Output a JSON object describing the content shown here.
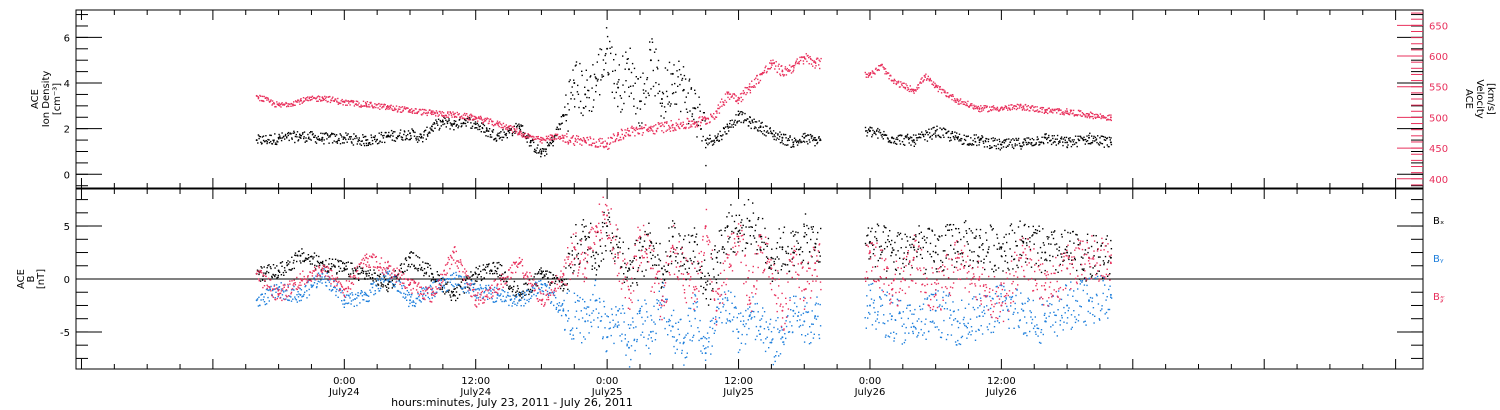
{
  "chart_data": [
    {
      "type": "scatter",
      "panel": "top",
      "ylabel": [
        "ACE",
        "Ion Density",
        "[cm⁻³]"
      ],
      "ylabel_right": [
        "ACE",
        "Velocity",
        "[km/s]"
      ],
      "ylim": [
        -0.6,
        7.2
      ],
      "ylim_right": [
        385,
        675
      ],
      "yticks": [
        0,
        2,
        4,
        6
      ],
      "yticks_right": [
        400,
        450,
        500,
        550,
        600,
        650
      ],
      "series": [
        {
          "axis": "left",
          "color": "#000000",
          "points": [
            [
              -8,
              1.5
            ],
            [
              -6,
              1.6
            ],
            [
              -4,
              1.7
            ],
            [
              -2,
              1.6
            ],
            [
              0,
              1.6
            ],
            [
              2,
              1.5
            ],
            [
              4,
              1.7
            ],
            [
              6,
              1.8
            ],
            [
              7,
              1.6
            ],
            [
              8,
              2.1
            ],
            [
              9,
              2.3
            ],
            [
              10,
              2.2
            ],
            [
              11,
              2.4
            ],
            [
              12,
              2.2
            ],
            [
              13,
              1.9
            ],
            [
              14,
              1.7
            ],
            [
              15,
              1.9
            ],
            [
              16,
              2.1
            ],
            [
              17,
              1.4
            ],
            [
              18,
              0.9
            ],
            [
              19,
              1.5
            ],
            [
              20,
              2.6
            ],
            [
              21,
              4.0
            ],
            [
              22,
              3.5
            ],
            [
              23,
              4.2
            ],
            [
              24,
              5.5
            ],
            [
              25,
              3.8
            ],
            [
              26,
              4.6
            ],
            [
              27,
              3.2
            ],
            [
              28,
              5.0
            ],
            [
              29,
              3.3
            ],
            [
              30,
              4.4
            ],
            [
              31,
              3.7
            ],
            [
              32,
              2.9
            ],
            [
              33,
              1.5
            ],
            [
              34,
              1.6
            ],
            [
              35,
              2.1
            ],
            [
              36,
              2.6
            ],
            [
              37,
              2.3
            ],
            [
              38,
              2.1
            ],
            [
              39,
              1.8
            ],
            [
              40,
              1.6
            ],
            [
              41,
              1.4
            ],
            [
              42,
              1.6
            ],
            [
              43,
              1.5
            ],
            [
              48,
              1.9
            ],
            [
              50,
              1.6
            ],
            [
              52,
              1.5
            ],
            [
              54,
              1.9
            ],
            [
              56,
              1.6
            ],
            [
              58,
              1.5
            ],
            [
              60,
              1.3
            ],
            [
              62,
              1.4
            ],
            [
              64,
              1.6
            ],
            [
              66,
              1.4
            ],
            [
              68,
              1.6
            ],
            [
              70,
              1.4
            ]
          ]
        },
        {
          "axis": "right",
          "color": "#e8305c",
          "points": [
            [
              -8,
              535
            ],
            [
              -6,
              520
            ],
            [
              -4,
              528
            ],
            [
              -2,
              533
            ],
            [
              0,
              525
            ],
            [
              2,
              522
            ],
            [
              4,
              517
            ],
            [
              6,
              512
            ],
            [
              8,
              508
            ],
            [
              10,
              505
            ],
            [
              12,
              500
            ],
            [
              14,
              490
            ],
            [
              15,
              485
            ],
            [
              16,
              475
            ],
            [
              18,
              463
            ],
            [
              19,
              470
            ],
            [
              20,
              467
            ],
            [
              22,
              462
            ],
            [
              24,
              458
            ],
            [
              25,
              472
            ],
            [
              26,
              478
            ],
            [
              28,
              482
            ],
            [
              30,
              488
            ],
            [
              32,
              492
            ],
            [
              33,
              497
            ],
            [
              34,
              510
            ],
            [
              35,
              540
            ],
            [
              36,
              532
            ],
            [
              37,
              550
            ],
            [
              38,
              570
            ],
            [
              39,
              588
            ],
            [
              40,
              575
            ],
            [
              41,
              584
            ],
            [
              42,
              598
            ],
            [
              43,
              590
            ],
            [
              48,
              570
            ],
            [
              49,
              585
            ],
            [
              50,
              560
            ],
            [
              52,
              545
            ],
            [
              53,
              568
            ],
            [
              54,
              550
            ],
            [
              56,
              528
            ],
            [
              58,
              515
            ],
            [
              60,
              516
            ],
            [
              62,
              518
            ],
            [
              64,
              512
            ],
            [
              66,
              510
            ],
            [
              68,
              505
            ],
            [
              70,
              500
            ]
          ]
        }
      ]
    },
    {
      "type": "scatter",
      "panel": "bottom",
      "ylabel": [
        "ACE",
        "B",
        "[nT]"
      ],
      "ylim": [
        -8.5,
        8.5
      ],
      "yticks": [
        -5,
        0,
        5
      ],
      "zero_line": true,
      "series": [
        {
          "name": "Bₓ",
          "color": "#000000",
          "points": [
            [
              -8,
              0.5
            ],
            [
              -6,
              0.8
            ],
            [
              -4,
              2.2
            ],
            [
              -2,
              1.5
            ],
            [
              0,
              1.0
            ],
            [
              2,
              0.5
            ],
            [
              4,
              -0.5
            ],
            [
              6,
              2.0
            ],
            [
              8,
              0.5
            ],
            [
              10,
              -1.5
            ],
            [
              12,
              0.5
            ],
            [
              14,
              1.0
            ],
            [
              16,
              -1.5
            ],
            [
              18,
              0.5
            ],
            [
              20,
              -0.5
            ],
            [
              21,
              3.0
            ],
            [
              22,
              4.0
            ],
            [
              23,
              2.5
            ],
            [
              24,
              5.0
            ],
            [
              25,
              3.0
            ],
            [
              26,
              1.0
            ],
            [
              27,
              2.0
            ],
            [
              28,
              3.5
            ],
            [
              29,
              1.0
            ],
            [
              30,
              4.0
            ],
            [
              31,
              2.0
            ],
            [
              32,
              3.5
            ],
            [
              33,
              -1.0
            ],
            [
              34,
              2.0
            ],
            [
              35,
              5.0
            ],
            [
              36,
              4.5
            ],
            [
              37,
              5.5
            ],
            [
              38,
              4.0
            ],
            [
              39,
              2.0
            ],
            [
              40,
              3.0
            ],
            [
              41,
              2.5
            ],
            [
              42,
              4.0
            ],
            [
              43,
              3.0
            ],
            [
              44,
              3.0
            ],
            [
              46,
              4.0
            ],
            [
              48,
              3.5
            ],
            [
              50,
              2.5
            ],
            [
              52,
              3.0
            ],
            [
              54,
              2.5
            ],
            [
              56,
              3.5
            ],
            [
              58,
              3.0
            ],
            [
              60,
              3.0
            ],
            [
              62,
              3.5
            ],
            [
              64,
              2.5
            ],
            [
              66,
              2.5
            ],
            [
              68,
              2.0
            ],
            [
              70,
              2.0
            ]
          ]
        },
        {
          "name": "Bᵧ",
          "color": "#1e7fdc",
          "points": [
            [
              -8,
              -2.0
            ],
            [
              -6,
              -1.0
            ],
            [
              -4,
              -1.5
            ],
            [
              -2,
              0.5
            ],
            [
              0,
              -2.0
            ],
            [
              2,
              -1.5
            ],
            [
              4,
              0.5
            ],
            [
              6,
              -2.0
            ],
            [
              8,
              -1.0
            ],
            [
              10,
              0.0
            ],
            [
              12,
              -1.0
            ],
            [
              14,
              -1.5
            ],
            [
              16,
              -2.0
            ],
            [
              18,
              -0.5
            ],
            [
              20,
              -3.0
            ],
            [
              22,
              -4.0
            ],
            [
              23,
              -2.0
            ],
            [
              24,
              -5.5
            ],
            [
              25,
              -3.0
            ],
            [
              26,
              -6.5
            ],
            [
              27,
              -3.0
            ],
            [
              28,
              -5.0
            ],
            [
              29,
              -2.0
            ],
            [
              30,
              -4.5
            ],
            [
              31,
              -6.0
            ],
            [
              32,
              -3.0
            ],
            [
              33,
              -7.0
            ],
            [
              34,
              -4.0
            ],
            [
              35,
              -2.0
            ],
            [
              36,
              -5.0
            ],
            [
              37,
              -3.5
            ],
            [
              38,
              -4.5
            ],
            [
              39,
              -6.0
            ],
            [
              40,
              -5.5
            ],
            [
              41,
              -3.0
            ],
            [
              42,
              -4.0
            ],
            [
              43,
              -3.5
            ],
            [
              44,
              -3.0
            ],
            [
              46,
              -4.0
            ],
            [
              48,
              -2.5
            ],
            [
              50,
              -3.5
            ],
            [
              52,
              -4.5
            ],
            [
              54,
              -3.0
            ],
            [
              56,
              -4.0
            ],
            [
              58,
              -3.5
            ],
            [
              60,
              -2.5
            ],
            [
              62,
              -3.0
            ],
            [
              64,
              -4.0
            ],
            [
              66,
              -2.5
            ],
            [
              68,
              -2.0
            ],
            [
              70,
              -1.5
            ]
          ]
        },
        {
          "name": "B𝓏",
          "color": "#e8305c",
          "points": [
            [
              -8,
              0.5
            ],
            [
              -6,
              -1.5
            ],
            [
              -4,
              0.0
            ],
            [
              -2,
              1.0
            ],
            [
              0,
              -1.0
            ],
            [
              2,
              2.0
            ],
            [
              4,
              1.0
            ],
            [
              6,
              -0.5
            ],
            [
              8,
              -1.5
            ],
            [
              10,
              2.5
            ],
            [
              12,
              -2.0
            ],
            [
              14,
              -0.5
            ],
            [
              16,
              1.5
            ],
            [
              18,
              -2.0
            ],
            [
              20,
              0.5
            ],
            [
              21,
              3.0
            ],
            [
              22,
              1.0
            ],
            [
              23,
              5.0
            ],
            [
              24,
              6.0
            ],
            [
              25,
              2.0
            ],
            [
              26,
              -1.0
            ],
            [
              27,
              4.0
            ],
            [
              28,
              1.0
            ],
            [
              29,
              -2.0
            ],
            [
              30,
              3.0
            ],
            [
              31,
              0.0
            ],
            [
              32,
              -1.0
            ],
            [
              33,
              5.0
            ],
            [
              34,
              -3.0
            ],
            [
              35,
              2.0
            ],
            [
              36,
              4.0
            ],
            [
              37,
              -2.0
            ],
            [
              38,
              3.0
            ],
            [
              39,
              1.0
            ],
            [
              40,
              -3.0
            ],
            [
              41,
              2.0
            ],
            [
              42,
              -1.0
            ],
            [
              43,
              1.5
            ],
            [
              44,
              1.0
            ],
            [
              46,
              -2.0
            ],
            [
              48,
              2.5
            ],
            [
              50,
              -1.0
            ],
            [
              52,
              2.0
            ],
            [
              54,
              -1.5
            ],
            [
              56,
              2.0
            ],
            [
              58,
              0.0
            ],
            [
              60,
              -2.5
            ],
            [
              62,
              2.5
            ],
            [
              64,
              -1.0
            ],
            [
              66,
              1.0
            ],
            [
              68,
              2.0
            ],
            [
              70,
              1.5
            ]
          ]
        }
      ]
    }
  ],
  "x_axis": {
    "unit": "hours since 2011-07-24 00:00",
    "xlim": [
      -24.5,
      98.5
    ],
    "ticks": [
      {
        "x": 0,
        "time": "0:00",
        "day": "July24"
      },
      {
        "x": 12,
        "time": "12:00",
        "day": "July24"
      },
      {
        "x": 24,
        "time": "0:00",
        "day": "July25"
      },
      {
        "x": 36,
        "time": "12:00",
        "day": "July25"
      },
      {
        "x": 48,
        "time": "0:00",
        "day": "July26"
      },
      {
        "x": 60,
        "time": "12:00",
        "day": "July26"
      }
    ],
    "label": "hours:minutes, July 23, 2011 - July 26, 2011"
  },
  "data_gap": [
    43.5,
    47.5
  ],
  "legend": [
    "Bₓ",
    "Bᵧ",
    "B𝓏"
  ]
}
